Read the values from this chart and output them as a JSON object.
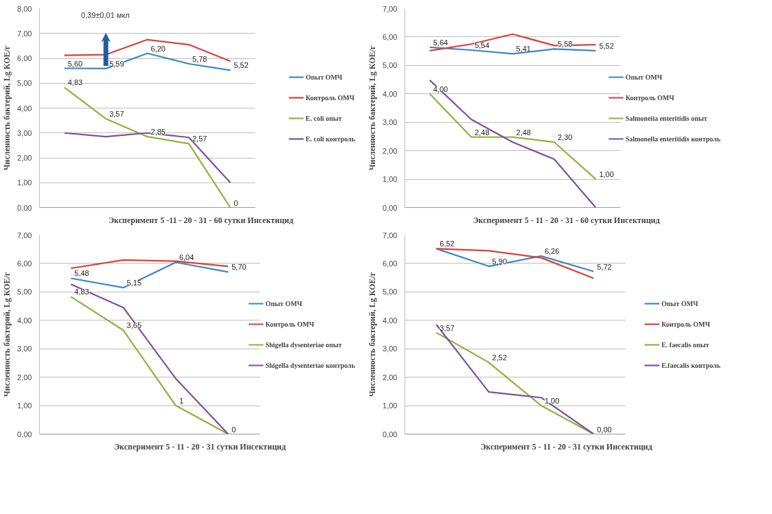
{
  "chart_data": [
    {
      "type": "line",
      "ylabel": "Численность бактерий, Lg КОЕ/г",
      "xlabel": "Эксперимент 5 -11 - 20 - 31 - 60 сутки Инсектицид",
      "categories": [
        null,
        null,
        null,
        null,
        null
      ],
      "ylim": [
        0,
        8
      ],
      "yticks": [
        {
          "value": 0,
          "label": "0,00"
        },
        {
          "value": 1,
          "label": "1,00"
        },
        {
          "value": 2,
          "label": "2,00"
        },
        {
          "value": 3,
          "label": "3,00"
        },
        {
          "value": 4,
          "label": "4,00"
        },
        {
          "value": 5,
          "label": "5,00"
        },
        {
          "value": 6,
          "label": "6,00"
        },
        {
          "value": 7,
          "label": "7,00"
        },
        {
          "value": 8,
          "label": "8,00"
        }
      ],
      "grid": "y",
      "legend": "right",
      "tick_labels": "y",
      "annotations": [
        "0,39±0,01 мкл"
      ],
      "series": [
        {
          "name": "Опыт ОМЧ",
          "color": "#3a86c8",
          "values": [
            5.6,
            5.59,
            6.2,
            5.78,
            5.52
          ],
          "value_labels": [
            "5,60",
            "5,59",
            "6,20",
            "5,78",
            "5,52"
          ]
        },
        {
          "name": "Контроль ОМЧ",
          "color": "#d9403a",
          "values": [
            6.12,
            6.15,
            6.75,
            6.55,
            5.88
          ]
        },
        {
          "name": "E. coli опыт",
          "color": "#8db33a",
          "values": [
            4.83,
            3.57,
            2.85,
            2.57,
            0
          ],
          "value_labels": [
            "4,83",
            "3,57",
            "2,85",
            "2,57",
            "0"
          ]
        },
        {
          "name": "E. coli контроль",
          "color": "#7a4fa0",
          "values": [
            3.0,
            2.85,
            3.0,
            2.82,
            1.0
          ]
        }
      ]
    },
    {
      "type": "line",
      "ylabel": "Численность бактерий, Lg КОЕ/г",
      "xlabel": "Эксперимент 5 - 11 - 20 - 31 - 60 сутки Инсектицид",
      "categories": [
        null,
        null,
        null,
        null,
        null
      ],
      "ylim": [
        0,
        7
      ],
      "yticks": [
        {
          "value": 0,
          "label": "0,00"
        },
        {
          "value": 1,
          "label": "1,00"
        },
        {
          "value": 2,
          "label": "2,00"
        },
        {
          "value": 3,
          "label": "3,00"
        },
        {
          "value": 4,
          "label": "4,00"
        },
        {
          "value": 5,
          "label": "5,00"
        },
        {
          "value": 6,
          "label": "6,00"
        },
        {
          "value": 7,
          "label": "7,00"
        }
      ],
      "grid": "y",
      "legend": "right",
      "tick_labels": "y",
      "series": [
        {
          "name": "Опыт ОМЧ",
          "color": "#3a86c8",
          "values": [
            5.64,
            5.54,
            5.41,
            5.58,
            5.52
          ],
          "value_labels": [
            "5,64",
            "5,54",
            "5,41",
            "5,58",
            "5,52"
          ]
        },
        {
          "name": "Контроль ОМЧ",
          "color": "#d9403a",
          "values": [
            5.52,
            5.75,
            6.1,
            5.7,
            5.73
          ]
        },
        {
          "name": "Salmoneiia enteritidis опыт",
          "color": "#8db33a",
          "values": [
            4.0,
            2.48,
            2.48,
            2.3,
            1.0
          ],
          "value_labels": [
            "4,00",
            "2,48",
            "2,48",
            "2,30",
            "1,00"
          ]
        },
        {
          "name": "Salmonella enteritidis контроль",
          "color": "#7a4fa0",
          "values": [
            4.48,
            3.1,
            2.3,
            1.7,
            0.0
          ]
        }
      ]
    },
    {
      "type": "line",
      "ylabel": "Численность бактерий, Lg КОЕ/г",
      "xlabel": "Эксперимент 5 - 11 - 20 - 31 сутки  Инсектицид",
      "categories": [
        null,
        null,
        null,
        null
      ],
      "ylim": [
        0,
        7
      ],
      "yticks": [
        {
          "value": 0,
          "label": "0,00"
        },
        {
          "value": 1,
          "label": "1,00"
        },
        {
          "value": 2,
          "label": "2,00"
        },
        {
          "value": 3,
          "label": "3,00"
        },
        {
          "value": 4,
          "label": "4,00"
        },
        {
          "value": 5,
          "label": "5,00"
        },
        {
          "value": 6,
          "label": "6,00"
        },
        {
          "value": 7,
          "label": "7,00"
        }
      ],
      "grid": "y",
      "legend": "right",
      "tick_labels": "y",
      "series": [
        {
          "name": "Опыт ОМЧ",
          "color": "#3a86c8",
          "values": [
            5.48,
            5.15,
            6.04,
            5.7
          ],
          "value_labels": [
            "5,48",
            "5,15",
            "6,04",
            "5,70"
          ]
        },
        {
          "name": "Контроль ОМЧ",
          "color": "#d9403a",
          "values": [
            5.83,
            6.12,
            6.08,
            5.9
          ]
        },
        {
          "name": "Shigella dysenteriae опыт",
          "color": "#8db33a",
          "values": [
            4.83,
            3.65,
            1,
            0
          ],
          "value_labels": [
            "4,83",
            "3,65",
            "1",
            "0"
          ]
        },
        {
          "name": "Shigella dysenteriae контроль",
          "color": "#7a4fa0",
          "values": [
            5.27,
            4.45,
            1.95,
            0
          ]
        }
      ]
    },
    {
      "type": "line",
      "ylabel": "Численность бактерий, Lg КОЕ/г",
      "xlabel": "Эксперимент 5 - 11 - 20 - 31 сутки Инсектицид",
      "categories": [
        null,
        null,
        null,
        null
      ],
      "ylim": [
        0,
        7
      ],
      "yticks": [
        {
          "value": 0,
          "label": "0,00"
        },
        {
          "value": 1,
          "label": "1,00"
        },
        {
          "value": 2,
          "label": "2,00"
        },
        {
          "value": 3,
          "label": "3,00"
        },
        {
          "value": 4,
          "label": "4,00"
        },
        {
          "value": 5,
          "label": "5,00"
        },
        {
          "value": 6,
          "label": "6,00"
        },
        {
          "value": 7,
          "label": "7,00"
        }
      ],
      "grid": "y",
      "legend": "right",
      "tick_labels": "y",
      "series": [
        {
          "name": "Опыт ОМЧ",
          "color": "#3a86c8",
          "values": [
            6.52,
            5.9,
            6.26,
            5.72
          ],
          "value_labels": [
            "6,52",
            "5,90",
            "6,26",
            "5,72"
          ]
        },
        {
          "name": "Контроль ОМЧ",
          "color": "#d9403a",
          "values": [
            6.52,
            6.45,
            6.2,
            5.48
          ]
        },
        {
          "name": "E. faecalis опыт",
          "color": "#8db33a",
          "values": [
            3.57,
            2.52,
            1.0,
            0.0
          ],
          "value_labels": [
            "3,57",
            "2,52",
            "1,00",
            "0,00"
          ]
        },
        {
          "name": "E.faecalis контроль",
          "color": "#7a4fa0",
          "values": [
            3.85,
            1.48,
            1.28,
            0
          ]
        }
      ]
    }
  ]
}
